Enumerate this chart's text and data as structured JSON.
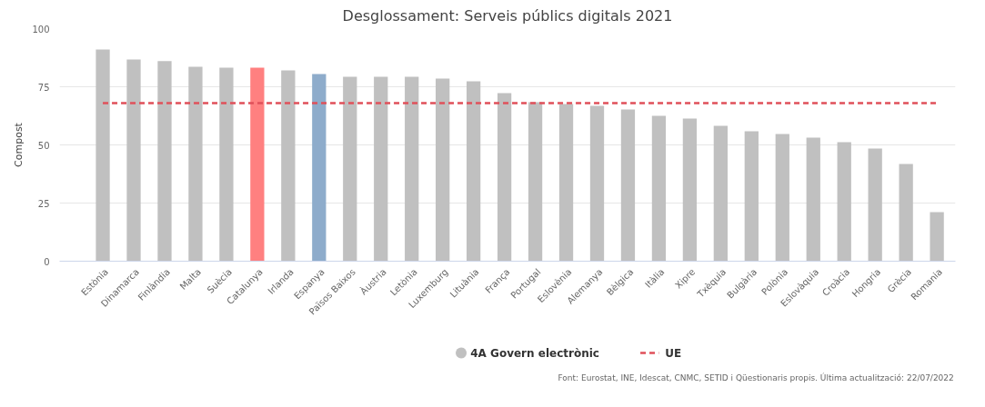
{
  "chart_data": {
    "type": "bar",
    "title": "Desglossament: Serveis públics digitals 2021",
    "ylabel": "Compost",
    "categories": [
      "Estònia",
      "Dinamarca",
      "Finlàndia",
      "Malta",
      "Suècia",
      "Catalunya",
      "Irlanda",
      "Espanya",
      "Països Baixos",
      "Àustria",
      "Letònia",
      "Luxemburg",
      "Lituània",
      "França",
      "Portugal",
      "Eslovènia",
      "Alemanya",
      "Bèlgica",
      "Itàlia",
      "Xipre",
      "Txèquia",
      "Bulgària",
      "Polònia",
      "Eslovàquia",
      "Croàcia",
      "Hongria",
      "Grècia",
      "Romania"
    ],
    "series": [
      {
        "name": "4A Govern electrònic",
        "color": "#c0c0c0",
        "values": [
          91,
          86.7,
          86,
          83.6,
          83.2,
          83.2,
          82,
          80.5,
          79.3,
          79.3,
          79.3,
          78.5,
          77.3,
          72.3,
          68.4,
          67.6,
          66.8,
          65.2,
          62.5,
          61.3,
          58.2,
          55.9,
          54.7,
          53.1,
          51.2,
          48.4,
          41.8,
          21.1
        ],
        "colors": [
          "#c0c0c0",
          "#c0c0c0",
          "#c0c0c0",
          "#c0c0c0",
          "#c0c0c0",
          "#ff8080",
          "#c0c0c0",
          "#8eaccb",
          "#c0c0c0",
          "#c0c0c0",
          "#c0c0c0",
          "#c0c0c0",
          "#c0c0c0",
          "#c0c0c0",
          "#c0c0c0",
          "#c0c0c0",
          "#c0c0c0",
          "#c0c0c0",
          "#c0c0c0",
          "#c0c0c0",
          "#c0c0c0",
          "#c0c0c0",
          "#c0c0c0",
          "#c0c0c0",
          "#c0c0c0",
          "#c0c0c0",
          "#c0c0c0",
          "#c0c0c0"
        ]
      }
    ],
    "ref_lines": [
      {
        "axis": "y",
        "value": 68,
        "label": "UE",
        "color": "#e0505a",
        "line_style": "dashed"
      }
    ],
    "ylim": [
      0,
      100
    ],
    "yticks": [
      0,
      25,
      50,
      75,
      100
    ],
    "grid": "y",
    "legend": "bottom",
    "annotations": [
      "Font: Eurostat, INE, Idescat, CNMC, SETID i Qüestionaris propis. Última actualització: 22/07/2022"
    ]
  }
}
